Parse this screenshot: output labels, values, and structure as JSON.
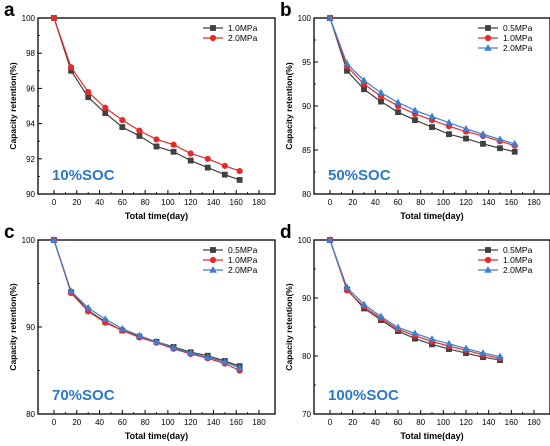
{
  "chart_data": [
    {
      "type": "line",
      "panel_letter": "a",
      "annotation": "10%SOC",
      "xlabel": "Total time(day)",
      "ylabel": "Capacity retention(%)",
      "xlim": [
        0,
        180
      ],
      "ylim": [
        90,
        100
      ],
      "xticks": [
        0,
        20,
        40,
        60,
        80,
        100,
        120,
        140,
        160,
        180
      ],
      "yticks": [
        90,
        92,
        94,
        96,
        98,
        100
      ],
      "grid": false,
      "legend_position": "top-right",
      "series": [
        {
          "name": "1.0MPa",
          "color": "#404040",
          "marker": "square",
          "x": [
            0,
            15,
            30,
            45,
            60,
            75,
            90,
            105,
            120,
            135,
            150,
            163
          ],
          "y": [
            100,
            97.0,
            95.5,
            94.6,
            93.8,
            93.3,
            92.7,
            92.4,
            91.9,
            91.5,
            91.1,
            90.8
          ]
        },
        {
          "name": "2.0MPa",
          "color": "#e8292b",
          "marker": "circle",
          "x": [
            0,
            15,
            30,
            45,
            60,
            75,
            90,
            105,
            120,
            135,
            150,
            163
          ],
          "y": [
            100,
            97.2,
            95.8,
            94.9,
            94.2,
            93.6,
            93.1,
            92.8,
            92.3,
            92.0,
            91.6,
            91.3
          ]
        }
      ]
    },
    {
      "type": "line",
      "panel_letter": "b",
      "annotation": "50%SOC",
      "xlabel": "Total time(day)",
      "ylabel": "Capacity retention(%)",
      "xlim": [
        0,
        180
      ],
      "ylim": [
        80,
        100
      ],
      "xticks": [
        0,
        20,
        40,
        60,
        80,
        100,
        120,
        140,
        160,
        180
      ],
      "yticks": [
        80,
        85,
        90,
        95,
        100
      ],
      "grid": false,
      "legend_position": "top-right",
      "series": [
        {
          "name": "0.5MPa",
          "color": "#404040",
          "marker": "square",
          "x": [
            0,
            15,
            30,
            45,
            60,
            75,
            90,
            105,
            120,
            135,
            150,
            163
          ],
          "y": [
            100,
            94.0,
            91.9,
            90.5,
            89.3,
            88.4,
            87.6,
            86.8,
            86.3,
            85.7,
            85.2,
            84.8
          ]
        },
        {
          "name": "1.0MPa",
          "color": "#e8292b",
          "marker": "circle",
          "x": [
            0,
            15,
            30,
            45,
            60,
            75,
            90,
            105,
            120,
            135,
            150,
            163
          ],
          "y": [
            100,
            94.5,
            92.5,
            91.1,
            90.0,
            89.1,
            88.4,
            87.7,
            87.1,
            86.6,
            86.0,
            85.5
          ]
        },
        {
          "name": "2.0MPa",
          "color": "#3a7fd0",
          "marker": "triangle",
          "x": [
            0,
            15,
            30,
            45,
            60,
            75,
            90,
            105,
            120,
            135,
            150,
            163
          ],
          "y": [
            100,
            94.8,
            92.9,
            91.5,
            90.4,
            89.5,
            88.8,
            88.1,
            87.4,
            86.8,
            86.2,
            85.7
          ]
        }
      ]
    },
    {
      "type": "line",
      "panel_letter": "c",
      "annotation": "70%SOC",
      "xlabel": "Total time(day)",
      "ylabel": "Capacity retention(%)",
      "xlim": [
        0,
        180
      ],
      "ylim": [
        80,
        100
      ],
      "xticks": [
        0,
        20,
        40,
        60,
        80,
        100,
        120,
        140,
        160,
        180
      ],
      "yticks": [
        80,
        90,
        100
      ],
      "grid": false,
      "legend_position": "top-right",
      "series": [
        {
          "name": "0.5MPa",
          "color": "#404040",
          "marker": "square",
          "x": [
            0,
            15,
            30,
            45,
            60,
            75,
            90,
            105,
            120,
            135,
            150,
            163
          ],
          "y": [
            100,
            94.0,
            91.9,
            90.6,
            89.6,
            88.9,
            88.3,
            87.7,
            87.1,
            86.7,
            86.1,
            85.5
          ]
        },
        {
          "name": "1.0MPa",
          "color": "#e8292b",
          "marker": "circle",
          "x": [
            0,
            15,
            30,
            45,
            60,
            75,
            90,
            105,
            120,
            135,
            150,
            163
          ],
          "y": [
            100,
            93.9,
            91.8,
            90.5,
            89.6,
            88.8,
            88.2,
            87.5,
            86.9,
            86.4,
            85.8,
            85.0
          ]
        },
        {
          "name": "2.0MPa",
          "color": "#3a7fd0",
          "marker": "triangle",
          "x": [
            0,
            15,
            30,
            45,
            60,
            75,
            90,
            105,
            120,
            135,
            150,
            163
          ],
          "y": [
            100,
            94.1,
            92.2,
            90.9,
            89.8,
            89.0,
            88.3,
            87.6,
            87.0,
            86.5,
            86.0,
            85.3
          ]
        }
      ]
    },
    {
      "type": "line",
      "panel_letter": "d",
      "annotation": "100%SOC",
      "xlabel": "Total time(day)",
      "ylabel": "Capacity retention(%)",
      "xlim": [
        0,
        180
      ],
      "ylim": [
        70,
        100
      ],
      "xticks": [
        0,
        20,
        40,
        60,
        80,
        100,
        120,
        140,
        160,
        180
      ],
      "yticks": [
        70,
        80,
        90,
        100
      ],
      "grid": false,
      "legend_position": "top-right",
      "series": [
        {
          "name": "0.5MPa",
          "color": "#404040",
          "marker": "square",
          "x": [
            0,
            15,
            30,
            45,
            60,
            75,
            90,
            105,
            120,
            135,
            150
          ],
          "y": [
            100,
            91.5,
            88.2,
            86.2,
            84.3,
            83.0,
            82.0,
            81.2,
            80.5,
            79.8,
            79.3
          ]
        },
        {
          "name": "1.0MPa",
          "color": "#e8292b",
          "marker": "circle",
          "x": [
            0,
            15,
            30,
            45,
            60,
            75,
            90,
            105,
            120,
            135,
            150
          ],
          "y": [
            100,
            91.3,
            88.5,
            86.5,
            84.6,
            83.5,
            82.5,
            81.7,
            81.0,
            80.2,
            79.6
          ]
        },
        {
          "name": "2.0MPa",
          "color": "#3a7fd0",
          "marker": "triangle",
          "x": [
            0,
            15,
            30,
            45,
            60,
            75,
            90,
            105,
            120,
            135,
            150
          ],
          "y": [
            100,
            91.8,
            88.9,
            86.8,
            84.9,
            83.9,
            82.9,
            82.1,
            81.3,
            80.5,
            79.9
          ]
        }
      ]
    }
  ]
}
